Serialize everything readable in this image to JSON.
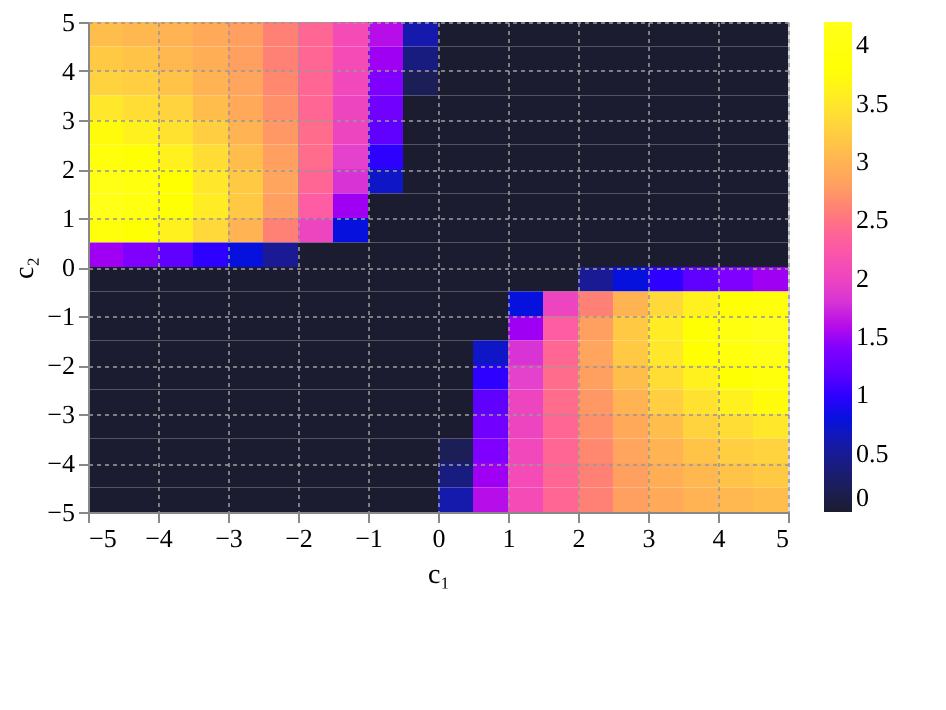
{
  "chart_data": {
    "type": "heatmap",
    "xlabel": "c₁",
    "ylabel": "c₂",
    "xlim": [
      -5,
      5
    ],
    "ylim": [
      -5,
      5
    ],
    "xticks": [
      -5,
      -4,
      -3,
      -2,
      -1,
      0,
      1,
      2,
      3,
      4,
      5
    ],
    "yticks": [
      -5,
      -4,
      -3,
      -2,
      -1,
      0,
      1,
      2,
      3,
      4,
      5
    ],
    "clim": [
      0,
      4.2
    ],
    "cticks": [
      0,
      0.5,
      1,
      1.5,
      2,
      2.5,
      3,
      3.5,
      4
    ],
    "colors": [
      "#1c1c30",
      "#1a1a8c",
      "#0000ff",
      "#8000ff",
      "#e040d0",
      "#ff60a0",
      "#ffa060",
      "#ffd040",
      "#ffff00",
      "#ffffff"
    ],
    "grid": true,
    "cells": [
      [
        3.1,
        3.05,
        3.0,
        2.9,
        2.8,
        2.6,
        2.4,
        2.1,
        1.6,
        0.6,
        0,
        0,
        0,
        0,
        0,
        0,
        0,
        0,
        0,
        0
      ],
      [
        3.2,
        3.15,
        3.05,
        2.95,
        2.8,
        2.6,
        2.4,
        2.1,
        1.5,
        0.4,
        0,
        0,
        0,
        0,
        0,
        0,
        0,
        0,
        0,
        0
      ],
      [
        3.3,
        3.25,
        3.15,
        3.0,
        2.85,
        2.65,
        2.4,
        2.05,
        1.4,
        0.2,
        0,
        0,
        0,
        0,
        0,
        0,
        0,
        0,
        0,
        0
      ],
      [
        3.5,
        3.4,
        3.3,
        3.1,
        2.9,
        2.7,
        2.4,
        2.0,
        1.3,
        0,
        0,
        0,
        0,
        0,
        0,
        0,
        0,
        0,
        0,
        0
      ],
      [
        3.7,
        3.6,
        3.45,
        3.25,
        3.0,
        2.75,
        2.45,
        2.0,
        1.2,
        0,
        0,
        0,
        0,
        0,
        0,
        0,
        0,
        0,
        0,
        0
      ],
      [
        3.9,
        3.8,
        3.6,
        3.4,
        3.1,
        2.8,
        2.45,
        1.9,
        1.0,
        0,
        0,
        0,
        0,
        0,
        0,
        0,
        0,
        0,
        0,
        0
      ],
      [
        4.1,
        3.95,
        3.75,
        3.5,
        3.2,
        2.85,
        2.4,
        1.8,
        0.7,
        0,
        0,
        0,
        0,
        0,
        0,
        0,
        0,
        0,
        0,
        0
      ],
      [
        4.15,
        4.0,
        3.8,
        3.55,
        3.2,
        2.8,
        2.3,
        1.5,
        0,
        0,
        0,
        0,
        0,
        0,
        0,
        0,
        0,
        0,
        0,
        0
      ],
      [
        3.9,
        3.8,
        3.6,
        3.35,
        3.0,
        2.6,
        2.0,
        0.8,
        0,
        0,
        0,
        0,
        0,
        0,
        0,
        0,
        0,
        0,
        0,
        0
      ],
      [
        1.5,
        1.4,
        1.2,
        1.0,
        0.8,
        0.5,
        0,
        0,
        0,
        0,
        0,
        0,
        0,
        0,
        0,
        0,
        0,
        0,
        0,
        0
      ],
      [
        0,
        0,
        0,
        0,
        0,
        0,
        0,
        0,
        0,
        0,
        0,
        0,
        0,
        0,
        0.5,
        0.8,
        1.0,
        1.2,
        1.4,
        1.5
      ],
      [
        0,
        0,
        0,
        0,
        0,
        0,
        0,
        0,
        0,
        0,
        0,
        0,
        0.8,
        2.0,
        2.6,
        3.0,
        3.35,
        3.6,
        3.8,
        3.9
      ],
      [
        0,
        0,
        0,
        0,
        0,
        0,
        0,
        0,
        0,
        0,
        0,
        0,
        1.5,
        2.3,
        2.8,
        3.2,
        3.55,
        3.8,
        4.0,
        4.15
      ],
      [
        0,
        0,
        0,
        0,
        0,
        0,
        0,
        0,
        0,
        0,
        0,
        0.7,
        1.8,
        2.4,
        2.85,
        3.2,
        3.5,
        3.75,
        3.95,
        4.1
      ],
      [
        0,
        0,
        0,
        0,
        0,
        0,
        0,
        0,
        0,
        0,
        0,
        1.0,
        1.9,
        2.45,
        2.8,
        3.1,
        3.4,
        3.6,
        3.8,
        3.9
      ],
      [
        0,
        0,
        0,
        0,
        0,
        0,
        0,
        0,
        0,
        0,
        0,
        1.2,
        2.0,
        2.45,
        2.75,
        3.0,
        3.25,
        3.45,
        3.6,
        3.7
      ],
      [
        0,
        0,
        0,
        0,
        0,
        0,
        0,
        0,
        0,
        0,
        0,
        1.3,
        2.0,
        2.4,
        2.7,
        2.9,
        3.1,
        3.3,
        3.4,
        3.5
      ],
      [
        0,
        0,
        0,
        0,
        0,
        0,
        0,
        0,
        0,
        0,
        0.2,
        1.4,
        2.05,
        2.4,
        2.65,
        2.85,
        3.0,
        3.15,
        3.25,
        3.3
      ],
      [
        0,
        0,
        0,
        0,
        0,
        0,
        0,
        0,
        0,
        0,
        0.4,
        1.5,
        2.1,
        2.4,
        2.6,
        2.8,
        2.95,
        3.05,
        3.15,
        3.2
      ],
      [
        0,
        0,
        0,
        0,
        0,
        0,
        0,
        0,
        0,
        0,
        0.6,
        1.6,
        2.1,
        2.4,
        2.6,
        2.8,
        2.9,
        3.0,
        3.05,
        3.1
      ]
    ]
  }
}
